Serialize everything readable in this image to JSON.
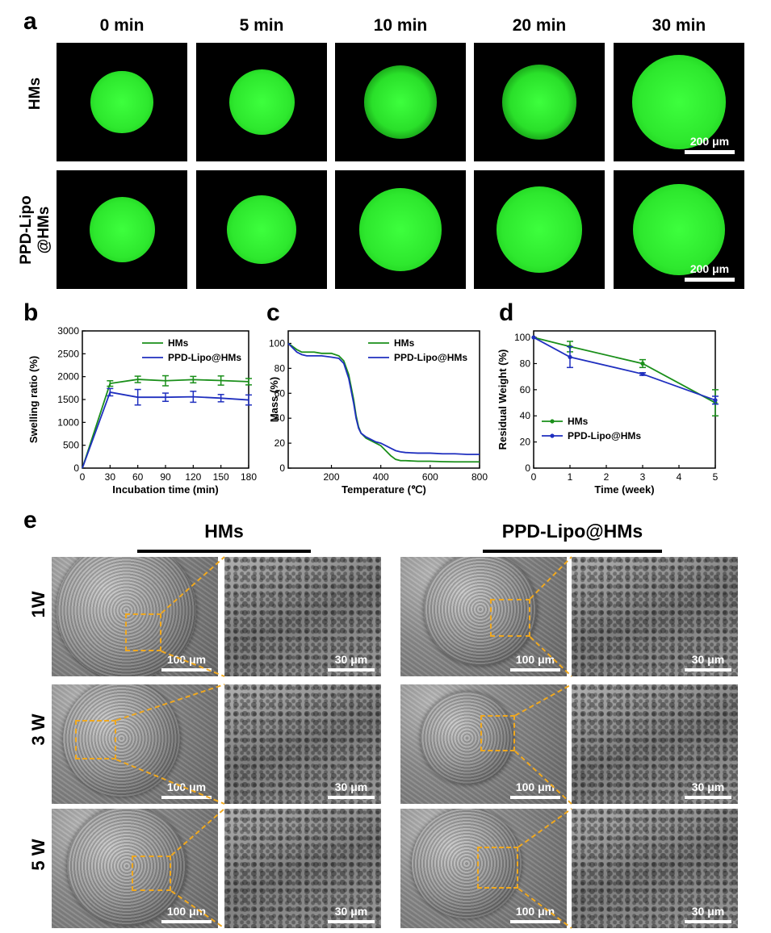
{
  "panel_letters": {
    "a": "a",
    "b": "b",
    "c": "c",
    "d": "d",
    "e": "e"
  },
  "panel_a": {
    "time_labels": [
      "0 min",
      "5 min",
      "10 min",
      "20 min",
      "30 min"
    ],
    "row_labels": [
      "HMs",
      "PPD-Lipo\n@HMs"
    ],
    "row_label_lines": [
      [
        "HMs"
      ],
      [
        "PPD-Lipo",
        "@HMs"
      ]
    ],
    "scale_bar": "200 μm",
    "dot_diameter_fraction": {
      "HMs": [
        0.48,
        0.5,
        0.56,
        0.57,
        0.72
      ],
      "PPD-Lipo@HMs": [
        0.5,
        0.53,
        0.63,
        0.66,
        0.7
      ]
    },
    "colors": {
      "fluorescence": "#2ee82e",
      "background": "#000000"
    }
  },
  "chart_data": [
    {
      "panel": "b",
      "type": "line",
      "xlabel": "Incubation time (min)",
      "ylabel": "Swelling ratio (%)",
      "xlim": [
        0,
        180
      ],
      "ylim": [
        0,
        3000
      ],
      "xticks": [
        0,
        30,
        60,
        90,
        120,
        150,
        180
      ],
      "yticks": [
        0,
        500,
        1000,
        1500,
        2000,
        2500,
        3000
      ],
      "legend_position": "top-right",
      "series": [
        {
          "name": "HMs",
          "color": "#1a8f1a",
          "x": [
            0,
            30,
            60,
            90,
            120,
            150,
            180
          ],
          "y": [
            0,
            1850,
            1940,
            1910,
            1935,
            1915,
            1890
          ],
          "err": [
            0,
            60,
            70,
            110,
            70,
            100,
            70
          ]
        },
        {
          "name": "PPD-Lipo@HMs",
          "color": "#1f2fbf",
          "x": [
            0,
            30,
            60,
            90,
            120,
            150,
            180
          ],
          "y": [
            0,
            1660,
            1550,
            1550,
            1560,
            1530,
            1490
          ],
          "err": [
            0,
            80,
            170,
            90,
            120,
            80,
            110
          ]
        }
      ]
    },
    {
      "panel": "c",
      "type": "line",
      "xlabel": "Temperature (℃)",
      "ylabel": "Mass (%)",
      "xlim": [
        25,
        800
      ],
      "ylim": [
        0,
        110
      ],
      "xticks": [
        200,
        400,
        600,
        800
      ],
      "yticks": [
        0,
        20,
        40,
        60,
        80,
        100
      ],
      "legend_position": "top-right",
      "series": [
        {
          "name": "HMs",
          "color": "#1a8f1a",
          "x": [
            25,
            40,
            60,
            80,
            100,
            130,
            160,
            200,
            230,
            250,
            270,
            290,
            300,
            310,
            320,
            340,
            360,
            380,
            400,
            420,
            440,
            460,
            480,
            500,
            550,
            600,
            650,
            700,
            750,
            800
          ],
          "y": [
            100,
            98,
            95,
            93,
            93,
            93,
            92,
            92,
            90,
            86,
            75,
            55,
            42,
            33,
            28,
            24,
            22,
            20,
            18,
            14,
            10,
            7,
            6,
            6,
            5.5,
            5.5,
            5.2,
            5,
            5,
            5
          ]
        },
        {
          "name": "PPD-Lipo@HMs",
          "color": "#1f2fbf",
          "x": [
            25,
            40,
            60,
            80,
            100,
            130,
            160,
            200,
            230,
            250,
            270,
            290,
            300,
            310,
            320,
            340,
            360,
            380,
            400,
            420,
            440,
            460,
            480,
            500,
            550,
            600,
            650,
            700,
            750,
            800
          ],
          "y": [
            100,
            97,
            93,
            91,
            90,
            90,
            90,
            89,
            88,
            84,
            72,
            52,
            40,
            32,
            28,
            25,
            23,
            21,
            20,
            18,
            16,
            14,
            13,
            12.5,
            12,
            12,
            11.5,
            11.5,
            11,
            11
          ]
        }
      ]
    },
    {
      "panel": "d",
      "type": "line",
      "xlabel": "Time (week)",
      "ylabel": "Residual Weight (%)",
      "xlim": [
        0,
        5
      ],
      "ylim": [
        0,
        105
      ],
      "xticks": [
        0,
        1,
        2,
        3,
        4,
        5
      ],
      "yticks": [
        0,
        20,
        40,
        60,
        80,
        100
      ],
      "legend_position": "bottom-left",
      "series": [
        {
          "name": "HMs",
          "color": "#1a8f1a",
          "x": [
            0,
            1,
            3,
            5
          ],
          "y": [
            100,
            93,
            80,
            50
          ],
          "err": [
            0,
            4,
            3,
            10
          ]
        },
        {
          "name": "PPD-Lipo@HMs",
          "color": "#1f2fbf",
          "x": [
            0,
            1,
            3,
            5
          ],
          "y": [
            100,
            85,
            72,
            52
          ],
          "err": [
            0,
            8,
            1,
            3
          ]
        }
      ]
    }
  ],
  "panel_e": {
    "group_headers": [
      "HMs",
      "PPD-Lipo@HMs"
    ],
    "week_labels": [
      "1W",
      "3 W",
      "5 W"
    ],
    "scale_overview": "100 μm",
    "scale_zoom": "30 μm",
    "colors": {
      "dashed_box": "#f0a81e"
    }
  }
}
